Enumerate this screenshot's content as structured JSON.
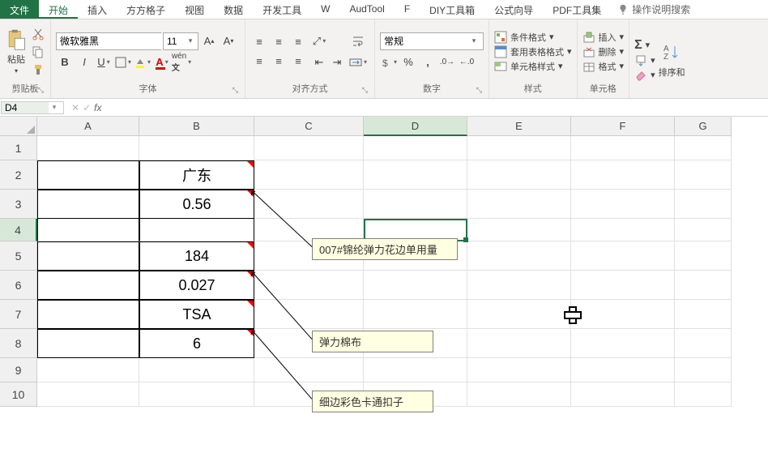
{
  "tabs": {
    "file": "文件",
    "list": [
      "开始",
      "插入",
      "方方格子",
      "视图",
      "数据",
      "开发工具",
      "W",
      "AudTool",
      "F",
      "DIY工具箱",
      "公式向导",
      "PDF工具集"
    ],
    "active_index": 0,
    "tell_me": "操作说明搜索"
  },
  "ribbon": {
    "clipboard": {
      "paste": "粘贴",
      "label": "剪贴板"
    },
    "font": {
      "name": "微软雅黑",
      "size": "11",
      "label": "字体"
    },
    "align": {
      "label": "对齐方式",
      "wrap": ""
    },
    "number": {
      "format": "常规",
      "label": "数字"
    },
    "styles": {
      "cond": "条件格式",
      "table": "套用表格格式",
      "cell": "单元格样式",
      "label": "样式"
    },
    "cells": {
      "insert": "插入",
      "delete": "删除",
      "format": "格式",
      "label": "单元格"
    },
    "edit": {
      "sort": "排序和"
    }
  },
  "namebox": "D4",
  "formula": "",
  "columns": [
    {
      "l": "A",
      "w": 126
    },
    {
      "l": "B",
      "w": 142
    },
    {
      "l": "C",
      "w": 135
    },
    {
      "l": "D",
      "w": 128
    },
    {
      "l": "E",
      "w": 128
    },
    {
      "l": "F",
      "w": 128
    },
    {
      "l": "G",
      "w": 70
    }
  ],
  "rows": [
    {
      "n": 1,
      "h": 30
    },
    {
      "n": 2,
      "h": 36
    },
    {
      "n": 3,
      "h": 36
    },
    {
      "n": 4,
      "h": 28
    },
    {
      "n": 5,
      "h": 36
    },
    {
      "n": 6,
      "h": 36
    },
    {
      "n": 7,
      "h": 36
    },
    {
      "n": 8,
      "h": 36
    },
    {
      "n": 9,
      "h": 30
    },
    {
      "n": 10,
      "h": 30
    }
  ],
  "active": {
    "col": 3,
    "row": 3
  },
  "data_cells": {
    "B2": "广东",
    "B3": "0.56",
    "B5": "184",
    "B6": "0.027",
    "B7": "TSA",
    "B8": "6"
  },
  "bordered_rows": [
    1,
    2,
    4,
    5,
    6,
    7
  ],
  "bordered_top_bottom": 3,
  "comments": {
    "B3": "007#锦纶弹力花边单用量",
    "B6": "弹力棉布",
    "B8": "细边彩色卡通扣子"
  },
  "comment_marks": [
    "B2",
    "B5",
    "B7"
  ]
}
